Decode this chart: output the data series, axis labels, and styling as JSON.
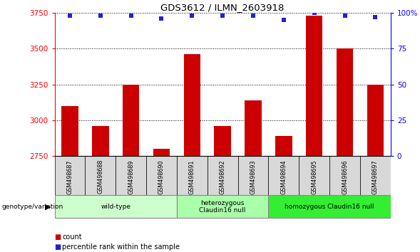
{
  "title": "GDS3612 / ILMN_2603918",
  "samples": [
    "GSM498687",
    "GSM498688",
    "GSM498689",
    "GSM498690",
    "GSM498691",
    "GSM498692",
    "GSM498693",
    "GSM498694",
    "GSM498695",
    "GSM498696",
    "GSM498697"
  ],
  "counts": [
    3100,
    2960,
    3250,
    2800,
    3460,
    2960,
    3140,
    2890,
    3730,
    3500,
    3250
  ],
  "percentile_ranks": [
    98,
    98,
    98,
    96,
    98,
    98,
    98,
    95,
    100,
    98,
    97
  ],
  "ylim_left": [
    2750,
    3750
  ],
  "ylim_right": [
    0,
    100
  ],
  "yticks_left": [
    2750,
    3000,
    3250,
    3500,
    3750
  ],
  "yticks_right": [
    0,
    25,
    50,
    75,
    100
  ],
  "bar_color": "#cc0000",
  "dot_color": "#2222cc",
  "groups": [
    {
      "label": "wild-type",
      "start": 0,
      "end": 3,
      "color": "#ccffcc"
    },
    {
      "label": "heterozygous\nClaudin16 null",
      "start": 4,
      "end": 6,
      "color": "#aaffaa"
    },
    {
      "label": "homozygous Claudin16 null",
      "start": 7,
      "end": 10,
      "color": "#33ee33"
    }
  ],
  "genotype_label": "genotype/variation",
  "legend_count_label": "count",
  "legend_percentile_label": "percentile rank within the sample",
  "background_color": "#ffffff",
  "plot_bg_color": "#ffffff",
  "sample_box_color": "#d8d8d8",
  "bar_width": 0.55
}
